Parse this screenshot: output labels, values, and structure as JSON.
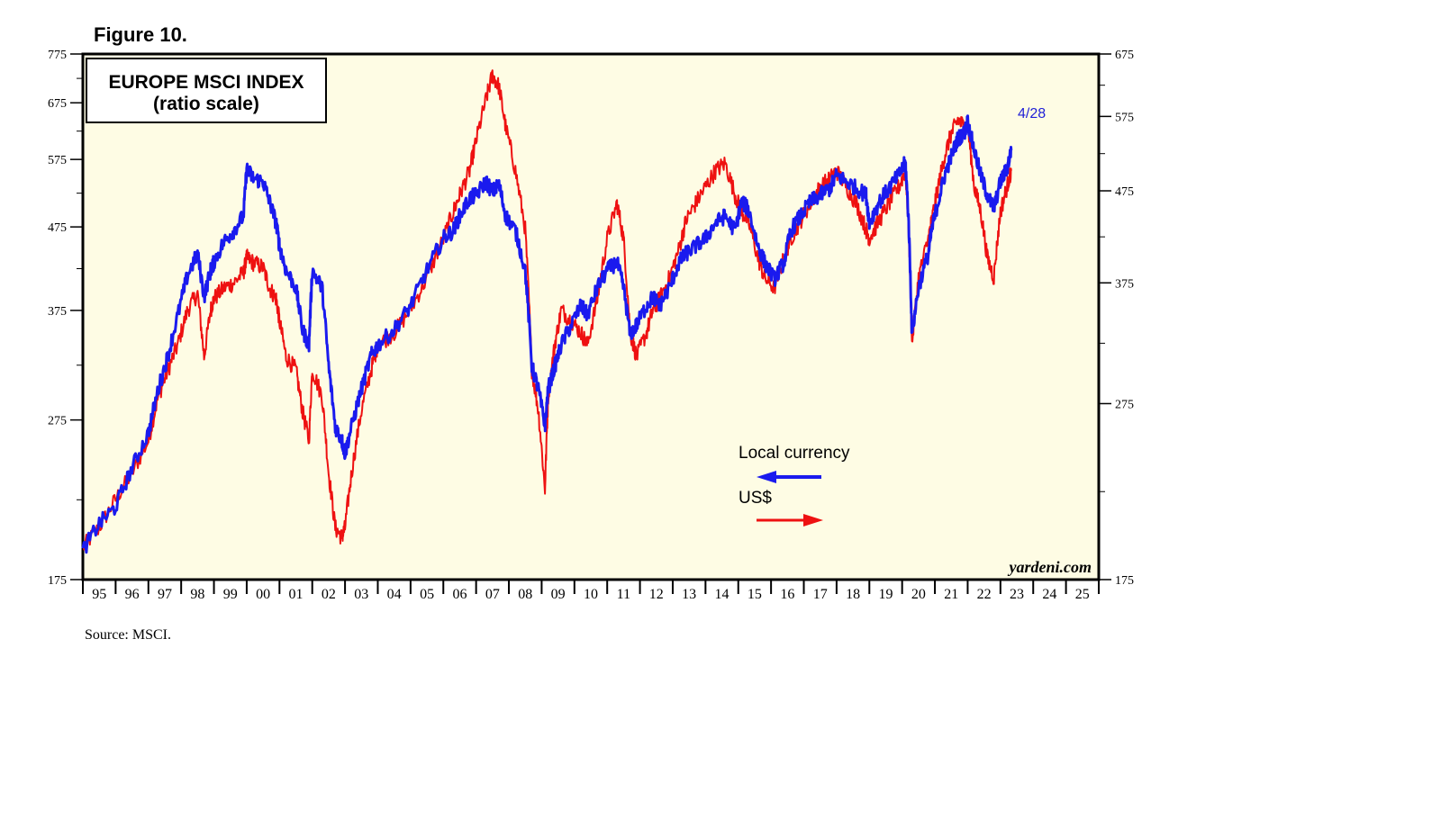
{
  "figure_label": "Figure 10.",
  "source": "Source: MSCI.",
  "brand": "yardeni.com",
  "colors": {
    "plot_bg": "#fefce4",
    "local": "#1a1aee",
    "usd": "#ee1111"
  },
  "chart_data": {
    "type": "line",
    "title": "EUROPE MSCI INDEX",
    "subtitle": "(ratio scale)",
    "y_scale": "log",
    "x_range": [
      1995.0,
      2026.0
    ],
    "x_tick_labels": [
      "95",
      "96",
      "97",
      "98",
      "99",
      "00",
      "01",
      "02",
      "03",
      "04",
      "05",
      "06",
      "07",
      "08",
      "09",
      "10",
      "11",
      "12",
      "13",
      "14",
      "15",
      "16",
      "17",
      "18",
      "19",
      "20",
      "21",
      "22",
      "23",
      "24",
      "25"
    ],
    "y_left": {
      "ylim": [
        175,
        775
      ],
      "ticks": [
        175,
        275,
        375,
        475,
        575,
        675,
        775
      ]
    },
    "y_right": {
      "ylim": [
        175,
        675
      ],
      "ticks": [
        175,
        275,
        375,
        475,
        575,
        675
      ]
    },
    "last_date_label": "4/28",
    "legend": [
      {
        "label": "Local currency",
        "arrow": "left"
      },
      {
        "label": "US$",
        "arrow": "right"
      }
    ],
    "series": [
      {
        "name": "Local currency",
        "axis": "left",
        "x": [
          1995.0,
          1995.5,
          1996.0,
          1996.5,
          1997.0,
          1997.3,
          1997.6,
          1997.9,
          1998.2,
          1998.5,
          1998.7,
          1998.9,
          1999.0,
          1999.3,
          1999.6,
          1999.9,
          2000.0,
          2000.2,
          2000.5,
          2000.7,
          2000.9,
          2001.0,
          2001.2,
          2001.5,
          2001.7,
          2001.9,
          2002.0,
          2002.3,
          2002.5,
          2002.7,
          2002.9,
          2003.0,
          2003.2,
          2003.5,
          2003.8,
          2004.0,
          2004.5,
          2005.0,
          2005.5,
          2006.0,
          2006.3,
          2006.5,
          2006.8,
          2007.0,
          2007.3,
          2007.5,
          2007.7,
          2007.9,
          2008.2,
          2008.5,
          2008.7,
          2008.9,
          2009.1,
          2009.2,
          2009.4,
          2009.6,
          2009.9,
          2010.2,
          2010.4,
          2010.7,
          2011.0,
          2011.3,
          2011.5,
          2011.7,
          2011.9,
          2012.2,
          2012.4,
          2012.6,
          2012.9,
          2013.2,
          2013.4,
          2013.7,
          2014.0,
          2014.3,
          2014.6,
          2014.9,
          2015.1,
          2015.3,
          2015.6,
          2015.8,
          2016.1,
          2016.4,
          2016.6,
          2016.9,
          2017.2,
          2017.5,
          2017.8,
          2018.0,
          2018.3,
          2018.6,
          2018.9,
          2019.0,
          2019.3,
          2019.6,
          2019.9,
          2020.1,
          2020.2,
          2020.3,
          2020.5,
          2020.8,
          2020.9,
          2021.1,
          2021.3,
          2021.5,
          2021.7,
          2021.9,
          2022.0,
          2022.2,
          2022.4,
          2022.6,
          2022.8,
          2023.0,
          2023.2,
          2023.33
        ],
        "y": [
          190,
          205,
          215,
          240,
          265,
          300,
          330,
          370,
          415,
          440,
          390,
          420,
          430,
          455,
          470,
          490,
          560,
          545,
          540,
          510,
          480,
          450,
          420,
          400,
          355,
          340,
          420,
          400,
          320,
          270,
          260,
          250,
          270,
          300,
          330,
          340,
          355,
          380,
          420,
          460,
          470,
          490,
          515,
          520,
          540,
          525,
          535,
          490,
          470,
          420,
          320,
          300,
          270,
          300,
          320,
          340,
          360,
          380,
          370,
          400,
          420,
          430,
          400,
          350,
          360,
          380,
          390,
          380,
          400,
          430,
          440,
          450,
          460,
          480,
          490,
          470,
          510,
          500,
          450,
          430,
          410,
          430,
          470,
          490,
          510,
          520,
          530,
          550,
          540,
          530,
          520,
          480,
          510,
          530,
          550,
          570,
          480,
          350,
          400,
          440,
          470,
          510,
          550,
          580,
          610,
          620,
          640,
          590,
          550,
          520,
          500,
          540,
          560,
          590
        ]
      },
      {
        "name": "US$",
        "axis": "right",
        "x": [
          1995.0,
          1995.5,
          1996.0,
          1996.5,
          1997.0,
          1997.3,
          1997.6,
          1997.9,
          1998.2,
          1998.5,
          1998.7,
          1998.9,
          1999.0,
          1999.3,
          1999.6,
          1999.9,
          2000.0,
          2000.2,
          2000.5,
          2000.7,
          2000.9,
          2001.0,
          2001.2,
          2001.5,
          2001.7,
          2001.9,
          2002.0,
          2002.3,
          2002.5,
          2002.7,
          2002.9,
          2003.0,
          2003.2,
          2003.5,
          2003.8,
          2004.0,
          2004.5,
          2005.0,
          2005.5,
          2006.0,
          2006.3,
          2006.5,
          2006.8,
          2007.0,
          2007.3,
          2007.5,
          2007.7,
          2007.9,
          2008.2,
          2008.5,
          2008.7,
          2008.9,
          2009.1,
          2009.2,
          2009.4,
          2009.6,
          2009.9,
          2010.2,
          2010.4,
          2010.7,
          2011.0,
          2011.3,
          2011.5,
          2011.7,
          2011.9,
          2012.2,
          2012.4,
          2012.6,
          2012.9,
          2013.2,
          2013.4,
          2013.7,
          2014.0,
          2014.3,
          2014.6,
          2014.9,
          2015.1,
          2015.3,
          2015.6,
          2015.8,
          2016.1,
          2016.4,
          2016.6,
          2016.9,
          2017.2,
          2017.5,
          2017.8,
          2018.0,
          2018.3,
          2018.6,
          2018.9,
          2019.0,
          2019.3,
          2019.6,
          2019.9,
          2020.1,
          2020.2,
          2020.3,
          2020.5,
          2020.8,
          2020.9,
          2021.1,
          2021.3,
          2021.5,
          2021.7,
          2021.9,
          2022.0,
          2022.2,
          2022.4,
          2022.6,
          2022.8,
          2023.0,
          2023.2,
          2023.33
        ],
        "y": [
          190,
          200,
          215,
          230,
          250,
          280,
          300,
          320,
          350,
          365,
          310,
          350,
          360,
          370,
          375,
          385,
          400,
          395,
          390,
          370,
          360,
          340,
          310,
          300,
          270,
          250,
          300,
          280,
          230,
          200,
          195,
          200,
          230,
          270,
          300,
          320,
          330,
          350,
          380,
          420,
          450,
          470,
          500,
          540,
          600,
          640,
          620,
          560,
          500,
          430,
          300,
          270,
          220,
          280,
          320,
          350,
          340,
          330,
          320,
          360,
          420,
          460,
          420,
          330,
          310,
          330,
          350,
          360,
          380,
          410,
          440,
          460,
          480,
          500,
          510,
          470,
          450,
          440,
          400,
          380,
          370,
          400,
          420,
          440,
          460,
          480,
          490,
          500,
          480,
          460,
          430,
          420,
          440,
          460,
          480,
          500,
          430,
          320,
          380,
          420,
          440,
          480,
          520,
          550,
          570,
          560,
          560,
          480,
          450,
          400,
          380,
          450,
          480,
          500
        ]
      }
    ]
  }
}
